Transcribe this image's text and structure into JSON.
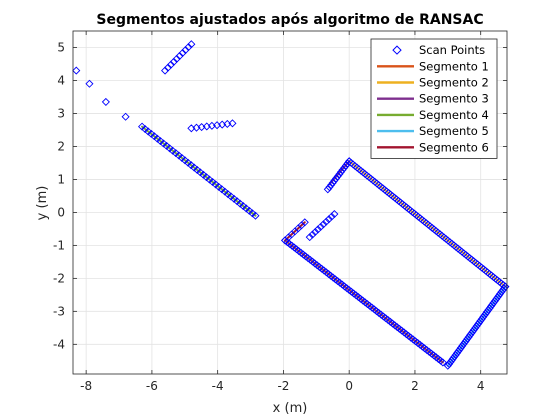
{
  "chart_data": {
    "type": "scatter",
    "title": "Segmentos ajustados após algoritmo de RANSAC",
    "xlabel": "x (m)",
    "ylabel": "y (m)",
    "xlim": [
      -8.4,
      4.8
    ],
    "ylim": [
      -4.9,
      5.5
    ],
    "xticks": [
      -8,
      -6,
      -4,
      -2,
      0,
      2,
      4
    ],
    "yticks": [
      -4,
      -3,
      -2,
      -1,
      0,
      1,
      2,
      3,
      4,
      5
    ],
    "xtick_labels": [
      "-8",
      "-6",
      "-4",
      "-2",
      "0",
      "2",
      "4"
    ],
    "ytick_labels": [
      "-4",
      "-3",
      "-2",
      "-1",
      "0",
      "1",
      "2",
      "3",
      "4",
      "5"
    ],
    "grid": true,
    "legend_position": "top-right",
    "scan_points": {
      "name": "Scan Points",
      "color": "#0000ff",
      "marker": "diamond",
      "clusters": [
        {
          "x": [
            -8.3,
            -7.9
          ],
          "y": [
            4.3,
            3.9
          ]
        },
        {
          "x": [
            -7.4,
            -6.8
          ],
          "y": [
            3.35,
            2.9
          ]
        },
        {
          "x": [
            -5.6,
            -4.8
          ],
          "y": [
            4.3,
            5.1
          ],
          "n": 10
        },
        {
          "x": [
            -4.8,
            -3.55
          ],
          "y": [
            2.55,
            2.7
          ],
          "n": 9
        },
        {
          "x": [
            -6.3,
            -2.85
          ],
          "y": [
            2.6,
            -0.1
          ],
          "n": 38
        },
        {
          "x": [
            -1.2,
            -0.45
          ],
          "y": [
            -0.75,
            -0.05
          ],
          "n": 10
        },
        {
          "x": [
            -1.95,
            2.85
          ],
          "y": [
            -0.85,
            -4.55
          ],
          "n": 70
        },
        {
          "x": [
            -0.65,
            0.0
          ],
          "y": [
            0.7,
            1.55
          ],
          "n": 14
        },
        {
          "x": [
            0.0,
            4.75
          ],
          "y": [
            1.55,
            -2.25
          ],
          "n": 80
        },
        {
          "x": [
            3.0,
            4.75
          ],
          "y": [
            -4.65,
            -2.25
          ],
          "n": 45
        },
        {
          "x": [
            -1.95,
            -1.35
          ],
          "y": [
            -0.85,
            -0.3
          ],
          "n": 7
        }
      ]
    },
    "series": [
      {
        "name": "Segmento 1",
        "color": "#d95319",
        "x": [
          -1.95,
          2.85
        ],
        "y": [
          -0.85,
          -4.55
        ]
      },
      {
        "name": "Segmento 2",
        "color": "#edb120",
        "x": [
          0.0,
          4.75
        ],
        "y": [
          1.55,
          -2.25
        ]
      },
      {
        "name": "Segmento 3",
        "color": "#7e2f8e",
        "x": [
          -0.6,
          0.0
        ],
        "y": [
          0.85,
          1.55
        ]
      },
      {
        "name": "Segmento 4",
        "color": "#77ac30",
        "x": [
          -6.3,
          -2.85
        ],
        "y": [
          2.6,
          -0.1
        ]
      },
      {
        "name": "Segmento 5",
        "color": "#4dbeee",
        "x": [
          3.0,
          4.75
        ],
        "y": [
          -4.65,
          -2.25
        ]
      },
      {
        "name": "Segmento 6",
        "color": "#a2142f",
        "x": [
          -1.95,
          -1.35
        ],
        "y": [
          -0.85,
          -0.3
        ]
      }
    ]
  }
}
